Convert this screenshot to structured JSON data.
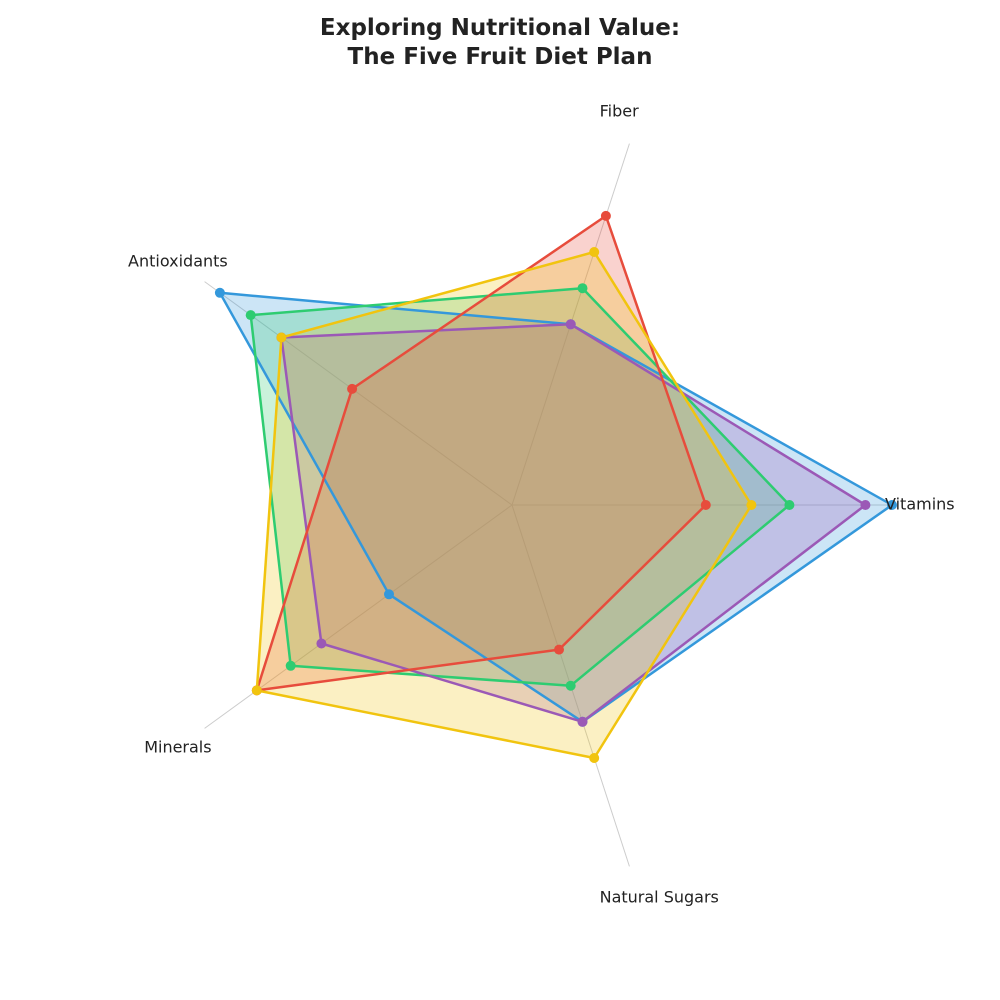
{
  "chart_data": {
    "type": "radar",
    "title": "Exploring Nutritional Value:\nThe Five Fruit Diet Plan",
    "axes": [
      "Vitamins",
      "Fiber",
      "Antioxidants",
      "Minerals",
      "Natural Sugars"
    ],
    "rmax": 10,
    "grid": false,
    "series": [
      {
        "color": "#3498db",
        "values": [
          10,
          5,
          9.5,
          4,
          6
        ]
      },
      {
        "color": "#2ecc71",
        "values": [
          7.3,
          6,
          8.5,
          7.2,
          5
        ]
      },
      {
        "color": "#9b59b6",
        "values": [
          9.3,
          5,
          7.5,
          6.2,
          6
        ]
      },
      {
        "color": "#e74c3c",
        "values": [
          5.1,
          8,
          5.2,
          8.3,
          4
        ]
      },
      {
        "color": "#f1c40f",
        "values": [
          6.3,
          7,
          7.5,
          8.3,
          7
        ]
      }
    ]
  }
}
